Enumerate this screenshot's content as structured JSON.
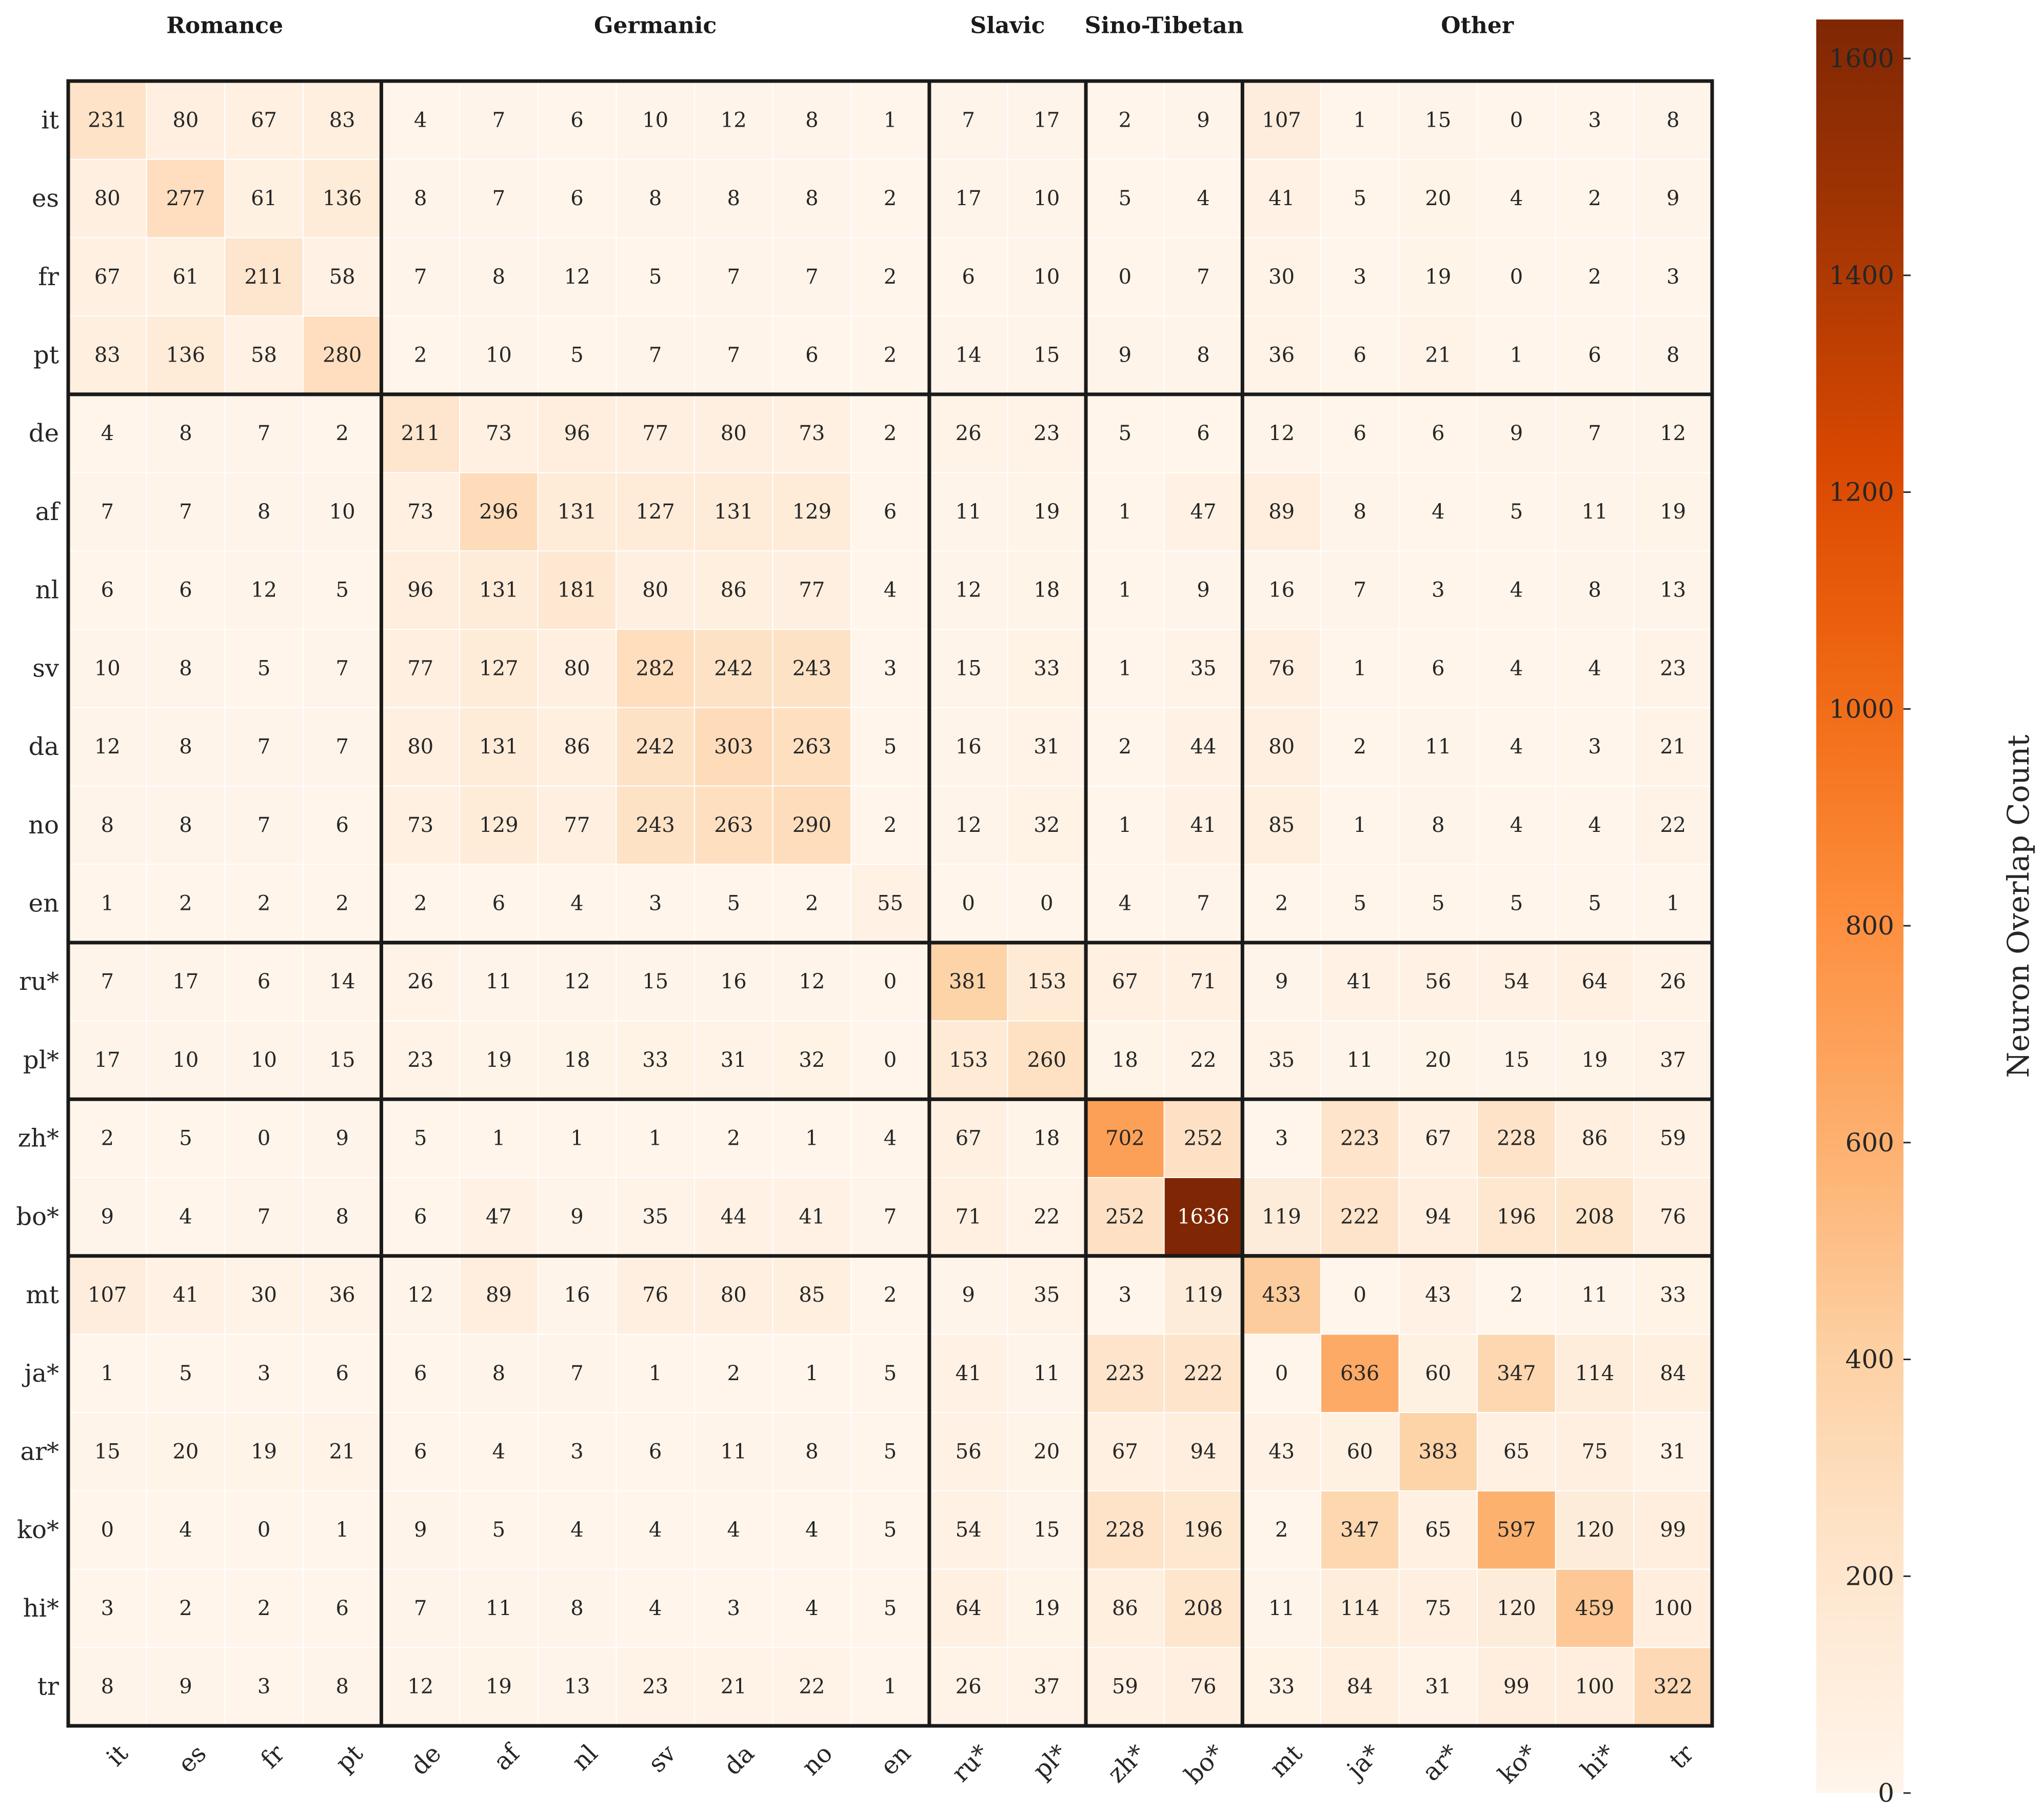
{
  "chart_data": {
    "type": "heatmap",
    "title": "",
    "row_labels": [
      "it",
      "es",
      "fr",
      "pt",
      "de",
      "af",
      "nl",
      "sv",
      "da",
      "no",
      "en",
      "ru*",
      "pl*",
      "zh*",
      "bo*",
      "mt",
      "ja*",
      "ar*",
      "ko*",
      "hi*",
      "tr"
    ],
    "col_labels": [
      "it",
      "es",
      "fr",
      "pt",
      "de",
      "af",
      "nl",
      "sv",
      "da",
      "no",
      "en",
      "ru*",
      "pl*",
      "zh*",
      "bo*",
      "mt",
      "ja*",
      "ar*",
      "ko*",
      "hi*",
      "tr"
    ],
    "values": [
      [
        231,
        80,
        67,
        83,
        4,
        7,
        6,
        10,
        12,
        8,
        1,
        7,
        17,
        2,
        9,
        107,
        1,
        15,
        0,
        3,
        8
      ],
      [
        80,
        277,
        61,
        136,
        8,
        7,
        6,
        8,
        8,
        8,
        2,
        17,
        10,
        5,
        4,
        41,
        5,
        20,
        4,
        2,
        9
      ],
      [
        67,
        61,
        211,
        58,
        7,
        8,
        12,
        5,
        7,
        7,
        2,
        6,
        10,
        0,
        7,
        30,
        3,
        19,
        0,
        2,
        3
      ],
      [
        83,
        136,
        58,
        280,
        2,
        10,
        5,
        7,
        7,
        6,
        2,
        14,
        15,
        9,
        8,
        36,
        6,
        21,
        1,
        6,
        8
      ],
      [
        4,
        8,
        7,
        2,
        211,
        73,
        96,
        77,
        80,
        73,
        2,
        26,
        23,
        5,
        6,
        12,
        6,
        6,
        9,
        7,
        12
      ],
      [
        7,
        7,
        8,
        10,
        73,
        296,
        131,
        127,
        131,
        129,
        6,
        11,
        19,
        1,
        47,
        89,
        8,
        4,
        5,
        11,
        19
      ],
      [
        6,
        6,
        12,
        5,
        96,
        131,
        181,
        80,
        86,
        77,
        4,
        12,
        18,
        1,
        9,
        16,
        7,
        3,
        4,
        8,
        13
      ],
      [
        10,
        8,
        5,
        7,
        77,
        127,
        80,
        282,
        242,
        243,
        3,
        15,
        33,
        1,
        35,
        76,
        1,
        6,
        4,
        4,
        23
      ],
      [
        12,
        8,
        7,
        7,
        80,
        131,
        86,
        242,
        303,
        263,
        5,
        16,
        31,
        2,
        44,
        80,
        2,
        11,
        4,
        3,
        21
      ],
      [
        8,
        8,
        7,
        6,
        73,
        129,
        77,
        243,
        263,
        290,
        2,
        12,
        32,
        1,
        41,
        85,
        1,
        8,
        4,
        4,
        22
      ],
      [
        1,
        2,
        2,
        2,
        2,
        6,
        4,
        3,
        5,
        2,
        55,
        0,
        0,
        4,
        7,
        2,
        5,
        5,
        5,
        5,
        1
      ],
      [
        7,
        17,
        6,
        14,
        26,
        11,
        12,
        15,
        16,
        12,
        0,
        381,
        153,
        67,
        71,
        9,
        41,
        56,
        54,
        64,
        26
      ],
      [
        17,
        10,
        10,
        15,
        23,
        19,
        18,
        33,
        31,
        32,
        0,
        153,
        260,
        18,
        22,
        35,
        11,
        20,
        15,
        19,
        37
      ],
      [
        2,
        5,
        0,
        9,
        5,
        1,
        1,
        1,
        2,
        1,
        4,
        67,
        18,
        702,
        252,
        3,
        223,
        67,
        228,
        86,
        59
      ],
      [
        9,
        4,
        7,
        8,
        6,
        47,
        9,
        35,
        44,
        41,
        7,
        71,
        22,
        252,
        1636,
        119,
        222,
        94,
        196,
        208,
        76
      ],
      [
        107,
        41,
        30,
        36,
        12,
        89,
        16,
        76,
        80,
        85,
        2,
        9,
        35,
        3,
        119,
        433,
        0,
        43,
        2,
        11,
        33
      ],
      [
        1,
        5,
        3,
        6,
        6,
        8,
        7,
        1,
        2,
        1,
        5,
        41,
        11,
        223,
        222,
        0,
        636,
        60,
        347,
        114,
        84
      ],
      [
        15,
        20,
        19,
        21,
        6,
        4,
        3,
        6,
        11,
        8,
        5,
        56,
        20,
        67,
        94,
        43,
        60,
        383,
        65,
        75,
        31
      ],
      [
        0,
        4,
        0,
        1,
        9,
        5,
        4,
        4,
        4,
        4,
        5,
        54,
        15,
        228,
        196,
        2,
        347,
        65,
        597,
        120,
        99
      ],
      [
        3,
        2,
        2,
        6,
        7,
        11,
        8,
        4,
        3,
        4,
        5,
        64,
        19,
        86,
        208,
        11,
        114,
        75,
        120,
        459,
        100
      ],
      [
        8,
        9,
        3,
        8,
        12,
        19,
        13,
        23,
        21,
        22,
        1,
        26,
        37,
        59,
        76,
        33,
        84,
        31,
        99,
        100,
        322
      ]
    ],
    "groups": [
      {
        "name": "Romance",
        "start": 0,
        "end": 3
      },
      {
        "name": "Germanic",
        "start": 4,
        "end": 10
      },
      {
        "name": "Slavic",
        "start": 11,
        "end": 12
      },
      {
        "name": "Sino-Tibetan",
        "start": 13,
        "end": 14
      },
      {
        "name": "Other",
        "start": 15,
        "end": 20
      }
    ],
    "colorbar": {
      "label": "Neuron Overlap Count",
      "min": 0,
      "max": 1636,
      "ticks": [
        0,
        200,
        400,
        600,
        800,
        1000,
        1200,
        1400,
        1600
      ],
      "colormap": "Oranges"
    },
    "colors": {
      "low": "#fff5eb",
      "high": "#7f2704",
      "grid_line": "#ffffff",
      "group_border": "#1a1a1a"
    },
    "legend_position": "right"
  }
}
